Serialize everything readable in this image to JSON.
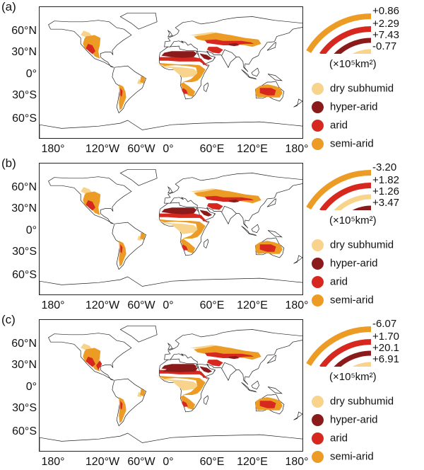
{
  "colors": {
    "dry_subhumid": "#f7d38c",
    "hyper_arid": "#8b1a1a",
    "arid": "#d7281f",
    "semi_arid": "#ec9b25"
  },
  "axes": {
    "lat_labels": [
      "60°N",
      "30°N",
      "0°",
      "30°S",
      "60°S"
    ],
    "lon_labels": [
      "180°",
      "120°W",
      "60°W",
      "0°",
      "60°E",
      "120°E",
      "180°"
    ]
  },
  "unit_label": "(×10⁵km²)",
  "panels": [
    {
      "label": "(a)",
      "arcs": [
        {
          "class": "semi_arid",
          "value": "+0.86"
        },
        {
          "class": "arid",
          "value": "+2.29"
        },
        {
          "class": "hyper_arid",
          "value": "+7.43"
        },
        {
          "class": "dry_subhumid",
          "value": "-0.77"
        }
      ],
      "legend": [
        "dry subhumid",
        "hyper-arid",
        "arid",
        "semi-arid"
      ]
    },
    {
      "label": "(b)",
      "arcs": [
        {
          "class": "semi_arid",
          "value": "-3.20"
        },
        {
          "class": "arid",
          "value": "+1.82"
        },
        {
          "class": "dry_subhumid",
          "value": "+1.26"
        },
        {
          "class": "hyper_arid",
          "value": "+3.47"
        }
      ],
      "legend": [
        "dry subhumid",
        "hyper-arid",
        "arid",
        "semi-arid"
      ]
    },
    {
      "label": "(c)",
      "arcs": [
        {
          "class": "semi_arid",
          "value": "-6.07"
        },
        {
          "class": "arid",
          "value": "+1.70"
        },
        {
          "class": "hyper_arid",
          "value": "+20.1"
        },
        {
          "class": "dry_subhumid",
          "value": "+6.91"
        }
      ],
      "legend": [
        "dry subhumid",
        "hyper-arid",
        "arid",
        "semi-arid"
      ]
    }
  ]
}
